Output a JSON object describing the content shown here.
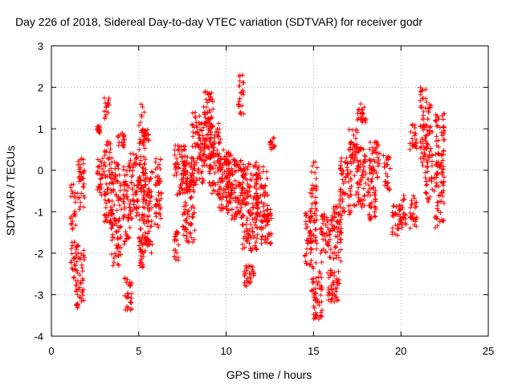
{
  "chart_data": {
    "type": "scatter",
    "title": "Day 226 of 2018, Sidereal Day-to-day VTEC variation (SDTVAR) for receiver godr",
    "xlabel": "GPS time / hours",
    "ylabel": "SDTVAR / TECUs",
    "xlim": [
      0,
      25
    ],
    "ylim": [
      -4,
      3
    ],
    "xticks": [
      "0",
      "5",
      "10",
      "15",
      "20",
      "25"
    ],
    "yticks": [
      "-4",
      "-3",
      "-2",
      "-1",
      "0",
      "1",
      "2",
      "3"
    ],
    "grid": true,
    "marker": "+",
    "series_color": "#ff0000",
    "series": [
      {
        "name": "SDTVAR",
        "clusters": [
          {
            "x": [
              1.1,
              1.4
            ],
            "y": [
              -2.6,
              -0.3
            ]
          },
          {
            "x": [
              1.4,
              1.9
            ],
            "y": [
              -3.4,
              -1.8
            ]
          },
          {
            "x": [
              1.5,
              1.9
            ],
            "y": [
              -1.0,
              0.3
            ]
          },
          {
            "x": [
              2.6,
              2.8
            ],
            "y": [
              0.9,
              1.1
            ]
          },
          {
            "x": [
              2.6,
              3.0
            ],
            "y": [
              -0.6,
              0.3
            ]
          },
          {
            "x": [
              3.0,
              3.3
            ],
            "y": [
              1.2,
              1.8
            ]
          },
          {
            "x": [
              3.0,
              3.5
            ],
            "y": [
              -1.3,
              0.7
            ]
          },
          {
            "x": [
              3.4,
              4.0
            ],
            "y": [
              -2.3,
              0.2
            ]
          },
          {
            "x": [
              3.8,
              4.2
            ],
            "y": [
              0.5,
              0.9
            ]
          },
          {
            "x": [
              4.1,
              4.5
            ],
            "y": [
              -1.8,
              0.3
            ]
          },
          {
            "x": [
              4.2,
              4.6
            ],
            "y": [
              -3.4,
              -2.5
            ]
          },
          {
            "x": [
              4.5,
              5.0
            ],
            "y": [
              -1.2,
              0.4
            ]
          },
          {
            "x": [
              5.0,
              5.4
            ],
            "y": [
              -2.4,
              1.6
            ]
          },
          {
            "x": [
              5.3,
              5.6
            ],
            "y": [
              0.7,
              1.0
            ]
          },
          {
            "x": [
              5.2,
              5.8
            ],
            "y": [
              -2.0,
              0.0
            ]
          },
          {
            "x": [
              5.9,
              6.3
            ],
            "y": [
              -1.4,
              0.3
            ]
          },
          {
            "x": [
              7.0,
              7.3
            ],
            "y": [
              -2.2,
              -1.4
            ]
          },
          {
            "x": [
              7.0,
              7.8
            ],
            "y": [
              -0.6,
              0.6
            ]
          },
          {
            "x": [
              7.5,
              8.2
            ],
            "y": [
              -1.8,
              0.2
            ]
          },
          {
            "x": [
              8.0,
              8.8
            ],
            "y": [
              -0.4,
              1.4
            ]
          },
          {
            "x": [
              8.7,
              9.3
            ],
            "y": [
              0.1,
              1.9
            ]
          },
          {
            "x": [
              9.0,
              9.7
            ],
            "y": [
              -0.6,
              1.3
            ]
          },
          {
            "x": [
              9.5,
              10.4
            ],
            "y": [
              -1.0,
              0.5
            ]
          },
          {
            "x": [
              10.0,
              11.0
            ],
            "y": [
              -1.2,
              0.3
            ]
          },
          {
            "x": [
              10.7,
              11.0
            ],
            "y": [
              1.3,
              2.3
            ]
          },
          {
            "x": [
              11.0,
              11.6
            ],
            "y": [
              -2.8,
              -2.3
            ]
          },
          {
            "x": [
              10.9,
              11.8
            ],
            "y": [
              -2.0,
              0.2
            ]
          },
          {
            "x": [
              11.7,
              12.4
            ],
            "y": [
              -1.4,
              0.1
            ]
          },
          {
            "x": [
              12.0,
              12.6
            ],
            "y": [
              -1.8,
              -0.9
            ]
          },
          {
            "x": [
              12.5,
              12.8
            ],
            "y": [
              0.4,
              0.8
            ]
          },
          {
            "x": [
              14.5,
              14.9
            ],
            "y": [
              -2.3,
              -1.0
            ]
          },
          {
            "x": [
              14.8,
              15.2
            ],
            "y": [
              -2.0,
              0.2
            ]
          },
          {
            "x": [
              14.9,
              15.5
            ],
            "y": [
              -3.6,
              -2.2
            ]
          },
          {
            "x": [
              15.4,
              15.9
            ],
            "y": [
              -2.0,
              -1.0
            ]
          },
          {
            "x": [
              15.8,
              16.5
            ],
            "y": [
              -3.2,
              -2.4
            ]
          },
          {
            "x": [
              15.9,
              16.6
            ],
            "y": [
              -2.2,
              -0.8
            ]
          },
          {
            "x": [
              16.5,
              17.2
            ],
            "y": [
              -1.1,
              0.3
            ]
          },
          {
            "x": [
              17.0,
              17.5
            ],
            "y": [
              0.3,
              1.0
            ]
          },
          {
            "x": [
              17.3,
              18.0
            ],
            "y": [
              -0.9,
              0.6
            ]
          },
          {
            "x": [
              17.5,
              18.0
            ],
            "y": [
              1.1,
              1.6
            ]
          },
          {
            "x": [
              18.1,
              18.6
            ],
            "y": [
              -1.2,
              -0.2
            ]
          },
          {
            "x": [
              18.2,
              18.8
            ],
            "y": [
              -0.2,
              0.7
            ]
          },
          {
            "x": [
              19.0,
              19.4
            ],
            "y": [
              -0.5,
              0.4
            ]
          },
          {
            "x": [
              19.5,
              20.0
            ],
            "y": [
              -1.6,
              -0.8
            ]
          },
          {
            "x": [
              20.0,
              20.3
            ],
            "y": [
              -1.4,
              -0.6
            ]
          },
          {
            "x": [
              20.5,
              20.9
            ],
            "y": [
              0.5,
              1.1
            ]
          },
          {
            "x": [
              20.5,
              20.9
            ],
            "y": [
              -1.4,
              -0.6
            ]
          },
          {
            "x": [
              21.1,
              21.5
            ],
            "y": [
              0.1,
              2.0
            ]
          },
          {
            "x": [
              21.4,
              21.8
            ],
            "y": [
              -0.8,
              1.6
            ]
          },
          {
            "x": [
              21.9,
              22.5
            ],
            "y": [
              -1.4,
              1.4
            ]
          }
        ]
      }
    ]
  }
}
